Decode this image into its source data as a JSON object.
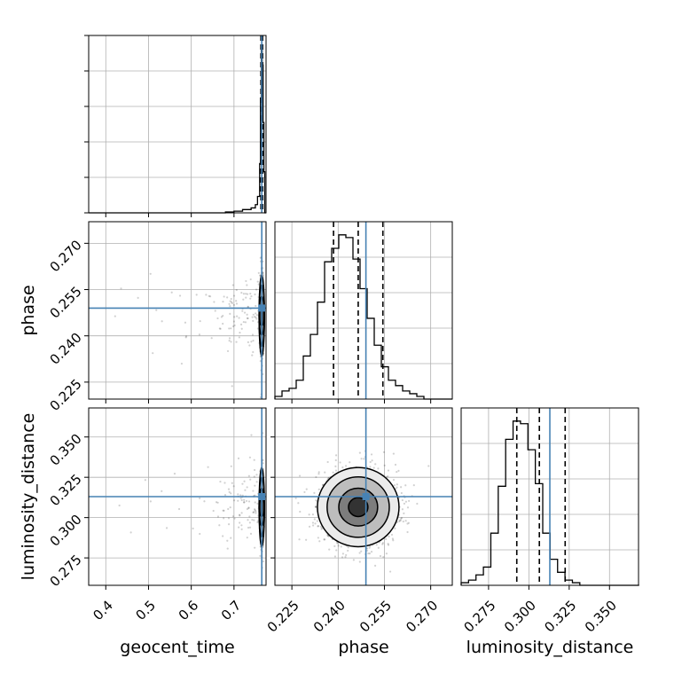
{
  "chart_data": {
    "type": "corner",
    "parameters": [
      "geocent_time",
      "phase",
      "luminosity_distance"
    ],
    "grid": true,
    "truths": {
      "geocent_time": 0.765,
      "phase": 0.249,
      "luminosity_distance": 0.313
    },
    "truth_color": "#4682b4",
    "hist_color": "#000000",
    "axes": {
      "geocent_time": {
        "label": "geocent_time",
        "range": [
          0.36,
          0.775
        ],
        "ticks": [
          0.4,
          0.5,
          0.6,
          0.7
        ],
        "tick_labels": [
          "0.4",
          "0.5",
          "0.6",
          "0.7"
        ]
      },
      "phase": {
        "label": "phase",
        "range": [
          0.2195,
          0.277
        ],
        "ticks": [
          0.225,
          0.24,
          0.255,
          0.27
        ],
        "tick_labels": [
          "0.225",
          "0.240",
          "0.255",
          "0.270"
        ]
      },
      "luminosity_distance": {
        "label": "luminosity_distance",
        "range": [
          0.258,
          0.368
        ],
        "ticks": [
          0.275,
          0.3,
          0.325,
          0.35
        ],
        "tick_labels": [
          "0.275",
          "0.300",
          "0.325",
          "0.350"
        ]
      }
    },
    "histograms": {
      "geocent_time": {
        "edges": [
          0.36,
          0.68,
          0.7,
          0.72,
          0.74,
          0.75,
          0.755,
          0.76,
          0.762,
          0.764,
          0.766,
          0.768,
          0.77,
          0.772,
          0.775
        ],
        "counts": [
          0,
          1,
          2,
          4,
          6,
          10,
          20,
          60,
          140,
          200,
          180,
          110,
          50,
          0
        ],
        "quantiles": [
          0.763,
          0.765,
          0.767
        ]
      },
      "phase": {
        "bin_start": 0.2195,
        "bin_width": 0.0023,
        "counts": [
          1,
          3,
          4,
          7,
          16,
          24,
          36,
          51,
          56,
          61,
          60,
          52,
          41,
          30,
          20,
          12,
          7,
          5,
          3,
          2,
          1,
          0,
          0,
          0,
          0
        ],
        "quantiles": [
          0.2385,
          0.2465,
          0.2545
        ]
      },
      "luminosity_distance": {
        "bin_start": 0.258,
        "bin_width": 0.0046,
        "counts": [
          1,
          2,
          4,
          7,
          20,
          38,
          56,
          63,
          62,
          52,
          39,
          20,
          10,
          5,
          2,
          1,
          0,
          0,
          0,
          0,
          0,
          0,
          0,
          0
        ],
        "quantiles": [
          0.2925,
          0.3065,
          0.3225
        ]
      }
    },
    "joint_centers": {
      "geocent_time_vs_phase": [
        0.765,
        0.2465
      ],
      "geocent_time_vs_luminosity_distance": [
        0.765,
        0.3065
      ],
      "phase_vs_luminosity_distance": [
        0.2465,
        0.3065
      ]
    }
  }
}
